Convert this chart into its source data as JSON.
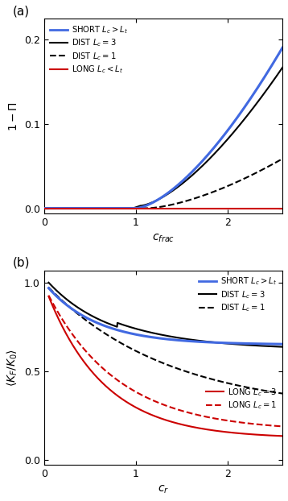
{
  "panel_a": {
    "xlim": [
      0,
      2.6
    ],
    "ylim": [
      -0.006,
      0.225
    ],
    "yticks": [
      0.0,
      0.1,
      0.2
    ],
    "xticks": [
      0,
      1,
      2
    ],
    "xlabel": "c_{frac}",
    "ylabel": "1-Π"
  },
  "panel_b": {
    "xlim": [
      0,
      2.6
    ],
    "ylim": [
      -0.03,
      1.07
    ],
    "yticks": [
      0.0,
      0.5,
      1.0
    ],
    "xticks": [
      0,
      1,
      2
    ],
    "xlabel": "c_r",
    "ylabel": "langle K_F/K_0 rangle"
  },
  "colors": {
    "short": "#4169E1",
    "dist": "#000000",
    "long": "#CC0000"
  },
  "fig_bg": "#ffffff"
}
